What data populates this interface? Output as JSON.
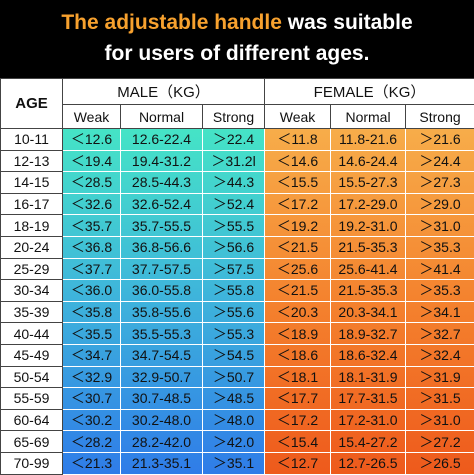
{
  "title": {
    "highlight": "The adjustable handle",
    "rest": "was suitable",
    "line2": "for users of different ages."
  },
  "table": {
    "age_header": "AGE",
    "groups": [
      "MALE（KG）",
      "FEMALE（KG）"
    ],
    "subheaders": [
      "Weak",
      "Normal",
      "Strong",
      "Weak",
      "Normal",
      "Strong"
    ],
    "rows": [
      [
        "10-11",
        "＜12.6",
        "12.6-22.4",
        "＞22.4",
        "＜11.8",
        "11.8-21.6",
        "＞21.6"
      ],
      [
        "12-13",
        "＜19.4",
        "19.4-31.2",
        "＞31.2l",
        "＜14.6",
        "14.6-24.4",
        "＞24.4"
      ],
      [
        "14-15",
        "＜28.5",
        "28.5-44.3",
        "＞44.3",
        "＜15.5",
        "15.5-27.3",
        "＞27.3"
      ],
      [
        "16-17",
        "＜32.6",
        "32.6-52.4",
        "＞52.4",
        "＜17.2",
        "17.2-29.0",
        "＞29.0"
      ],
      [
        "18-19",
        "＜35.7",
        "35.7-55.5",
        "＞55.5",
        "＜19.2",
        "19.2-31.0",
        "＞31.0"
      ],
      [
        "20-24",
        "＜36.8",
        "36.8-56.6",
        "＞56.6",
        "＜21.5",
        "21.5-35.3",
        "＞35.3"
      ],
      [
        "25-29",
        "＜37.7",
        "37.7-57.5",
        "＞57.5",
        "＜25.6",
        "25.6-41.4",
        "＞41.4"
      ],
      [
        "30-34",
        "＜36.0",
        "36.0-55.8",
        "＞55.8",
        "＜21.5",
        "21.5-35.3",
        "＞35.3"
      ],
      [
        "35-39",
        "＜35.8",
        "35.8-55.6",
        "＞55.6",
        "＜20.3",
        "20.3-34.1",
        "＞34.1"
      ],
      [
        "40-44",
        "＜35.5",
        "35.5-55.3",
        "＞55.3",
        "＜18.9",
        "18.9-32.7",
        "＞32.7"
      ],
      [
        "45-49",
        "＜34.7",
        "34.7-54.5",
        "＞54.5",
        "＜18.6",
        "18.6-32.4",
        "＞32.4"
      ],
      [
        "50-54",
        "＜32.9",
        "32.9-50.7",
        "＞50.7",
        "＜18.1",
        "18.1-31.9",
        "＞31.9"
      ],
      [
        "55-59",
        "＜30.7",
        "30.7-48.5",
        "＞48.5",
        "＜17.7",
        "17.7-31.5",
        "＞31.5"
      ],
      [
        "60-64",
        "＜30.2",
        "30.2-48.0",
        "＞48.0",
        "＜17.2",
        "17.2-31.0",
        "＞31.0"
      ],
      [
        "65-69",
        "＜28.2",
        "28.2-42.0",
        "＞42.0",
        "＜15.4",
        "15.4-27.2",
        "＞27.2"
      ],
      [
        "70-99",
        "＜21.3",
        "21.3-35.1",
        "＞35.1",
        "＜12.7",
        "12.7-26.5",
        "＞26.5"
      ]
    ]
  }
}
